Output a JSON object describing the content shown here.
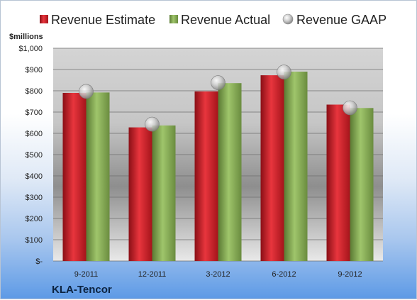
{
  "company": "KLA-Tencor",
  "unit_label": "$millions",
  "colors": {
    "estimate": "#d6262f",
    "actual": "#8bb05a",
    "gaap": "#c4c4c4"
  },
  "chart_data": {
    "type": "bar",
    "title": "",
    "xlabel": "",
    "ylabel": "$millions",
    "ylim": [
      0,
      1000
    ],
    "yticks": [
      0,
      100,
      200,
      300,
      400,
      500,
      600,
      700,
      800,
      900,
      1000
    ],
    "ytick_labels": [
      "$-",
      "$100",
      "$200",
      "$300",
      "$400",
      "$500",
      "$600",
      "$700",
      "$800",
      "$900",
      "$1,000"
    ],
    "grid": true,
    "legend_position": "top",
    "categories": [
      "9-2011",
      "12-2011",
      "3-2012",
      "6-2012",
      "9-2012"
    ],
    "series": [
      {
        "name": "Revenue Estimate",
        "values": [
          790,
          628,
          797,
          873,
          735
        ]
      },
      {
        "name": "Revenue Actual",
        "values": [
          792,
          637,
          836,
          890,
          719
        ]
      },
      {
        "name": "Revenue GAAP",
        "marker": "circle",
        "values": [
          797,
          643,
          838,
          888,
          720
        ]
      }
    ]
  }
}
